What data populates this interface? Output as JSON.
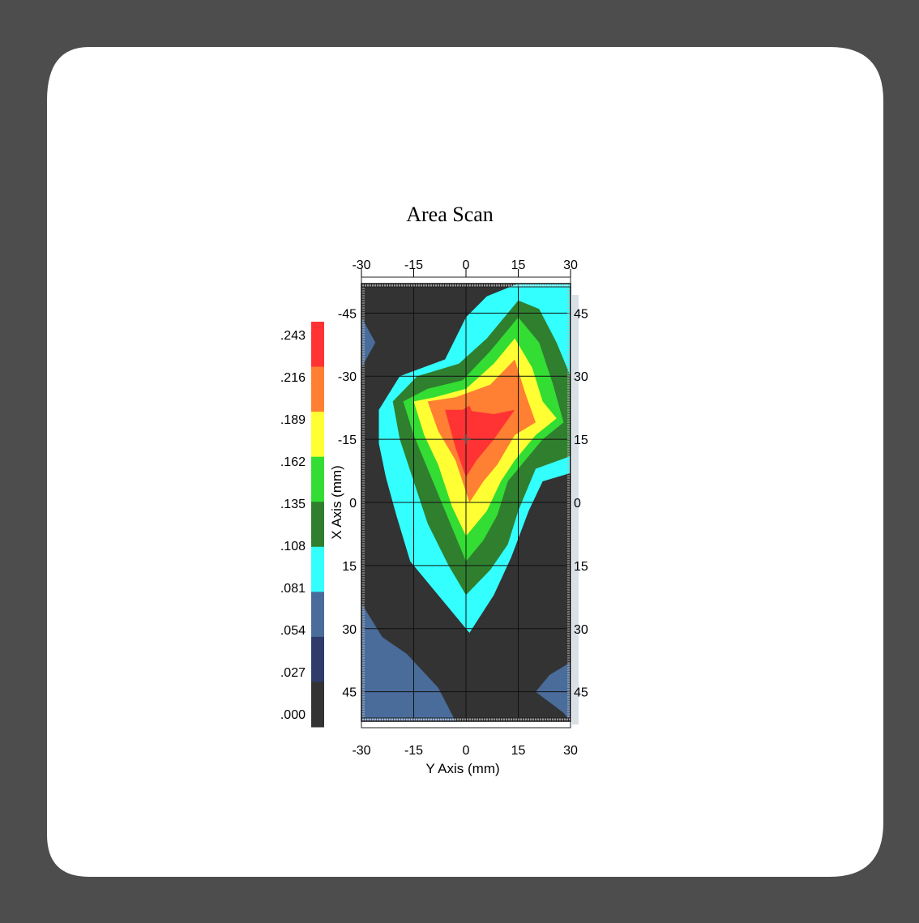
{
  "chart_data": {
    "type": "heatmap",
    "subtype": "filled-contour",
    "title": "Area Scan",
    "xlabel": "Y Axis (mm)",
    "ylabel": "X Axis (mm)",
    "x_ticks": [
      "-30",
      "-15",
      "0",
      "15",
      "30"
    ],
    "y_ticks": [
      "-45",
      "-30",
      "-15",
      "0",
      "15",
      "30",
      "45"
    ],
    "y_ticks_right": [
      "45",
      "30",
      "15",
      "0",
      "15",
      "30",
      "45"
    ],
    "xlim": [
      -30,
      30
    ],
    "ylim": [
      -52,
      52
    ],
    "y_axis_inverted": true,
    "grid": true,
    "colorbar": {
      "labels": [
        ".243",
        ".216",
        ".189",
        ".162",
        ".135",
        ".108",
        ".081",
        ".054",
        ".027",
        ".000"
      ],
      "levels": [
        0.0,
        0.027,
        0.054,
        0.081,
        0.108,
        0.135,
        0.162,
        0.189,
        0.216,
        0.243
      ],
      "colors": [
        "#333333",
        "#2f3b6b",
        "#4a6c9b",
        "#33ffff",
        "#2f7f2f",
        "#33dd33",
        "#ffff33",
        "#ff7f33",
        "#ff3333"
      ]
    },
    "contours": [
      {
        "level": 0.054,
        "points": [
          [
            -30,
            -44
          ],
          [
            -26,
            -38
          ],
          [
            -30,
            -32
          ]
        ]
      },
      {
        "level": 0.081,
        "points": [
          [
            -25,
            -22
          ],
          [
            -19,
            -30
          ],
          [
            -6,
            -34
          ],
          [
            0,
            -44
          ],
          [
            6,
            -49
          ],
          [
            15,
            -52
          ],
          [
            30,
            -52
          ],
          [
            30,
            -7
          ],
          [
            22,
            -5
          ],
          [
            18,
            2
          ],
          [
            13,
            13
          ],
          [
            8,
            22
          ],
          [
            1,
            31
          ],
          [
            -6,
            24
          ],
          [
            -16,
            14
          ],
          [
            -20,
            3
          ],
          [
            -23,
            -6
          ],
          [
            -25,
            -14
          ]
        ]
      },
      {
        "level": 0.108,
        "points": [
          [
            -21,
            -24
          ],
          [
            -14,
            -30
          ],
          [
            -2,
            -33
          ],
          [
            6,
            -39
          ],
          [
            15,
            -48
          ],
          [
            21,
            -46
          ],
          [
            26,
            -38
          ],
          [
            30,
            -30
          ],
          [
            30,
            -11
          ],
          [
            20,
            -8
          ],
          [
            15,
            2
          ],
          [
            12,
            10
          ],
          [
            7,
            16
          ],
          [
            0,
            22
          ],
          [
            -5,
            15
          ],
          [
            -11,
            5
          ],
          [
            -15,
            -5
          ],
          [
            -19,
            -15
          ]
        ]
      },
      {
        "level": 0.135,
        "points": [
          [
            -18,
            -24
          ],
          [
            -11,
            -27
          ],
          [
            -1,
            -29
          ],
          [
            7,
            -36
          ],
          [
            15,
            -44
          ],
          [
            21,
            -38
          ],
          [
            25,
            -28
          ],
          [
            28,
            -19
          ],
          [
            22,
            -15
          ],
          [
            18,
            -11
          ],
          [
            12,
            -5
          ],
          [
            9,
            3
          ],
          [
            5,
            9
          ],
          [
            0,
            14
          ],
          [
            -5,
            4
          ],
          [
            -10,
            -6
          ],
          [
            -15,
            -16
          ]
        ]
      },
      {
        "level": 0.162,
        "points": [
          [
            -15,
            -24
          ],
          [
            -9,
            -25
          ],
          [
            0,
            -27
          ],
          [
            8,
            -33
          ],
          [
            14,
            -39
          ],
          [
            19,
            -32
          ],
          [
            22,
            -24
          ],
          [
            26,
            -20
          ],
          [
            20,
            -16
          ],
          [
            14,
            -10
          ],
          [
            10,
            -5
          ],
          [
            6,
            2
          ],
          [
            2,
            6
          ],
          [
            0,
            8
          ],
          [
            -4,
            1
          ],
          [
            -8,
            -9
          ],
          [
            -12,
            -16
          ]
        ]
      },
      {
        "level": 0.189,
        "points": [
          [
            -11,
            -24
          ],
          [
            -3,
            -25
          ],
          [
            7,
            -28
          ],
          [
            14,
            -34
          ],
          [
            17,
            -26
          ],
          [
            20,
            -19
          ],
          [
            14,
            -16
          ],
          [
            9,
            -9
          ],
          [
            5,
            -5
          ],
          [
            1,
            0
          ],
          [
            -3,
            -10
          ],
          [
            -8,
            -17
          ]
        ]
      },
      {
        "level": 0.216,
        "points": [
          [
            -6,
            -22
          ],
          [
            -1,
            -22
          ],
          [
            8,
            -21
          ],
          [
            14,
            -22
          ],
          [
            8,
            -15
          ],
          [
            3,
            -10
          ],
          [
            0,
            -6
          ],
          [
            -3,
            -13
          ]
        ]
      },
      {
        "level": 0.243,
        "points": [
          [
            -1,
            -22
          ],
          [
            1,
            -23
          ],
          [
            2,
            -21
          ],
          [
            1,
            -20
          ]
        ]
      },
      {
        "level": 0.054,
        "points": [
          [
            -30,
            24
          ],
          [
            -24,
            32
          ],
          [
            -17,
            36
          ],
          [
            -8,
            44
          ],
          [
            -3,
            52
          ],
          [
            -30,
            52
          ]
        ]
      },
      {
        "level": 0.054,
        "points": [
          [
            20,
            45
          ],
          [
            24,
            41
          ],
          [
            30,
            38
          ],
          [
            30,
            52
          ],
          [
            28,
            50
          ]
        ]
      }
    ],
    "markers": [
      [
        0,
        -15
      ]
    ]
  }
}
